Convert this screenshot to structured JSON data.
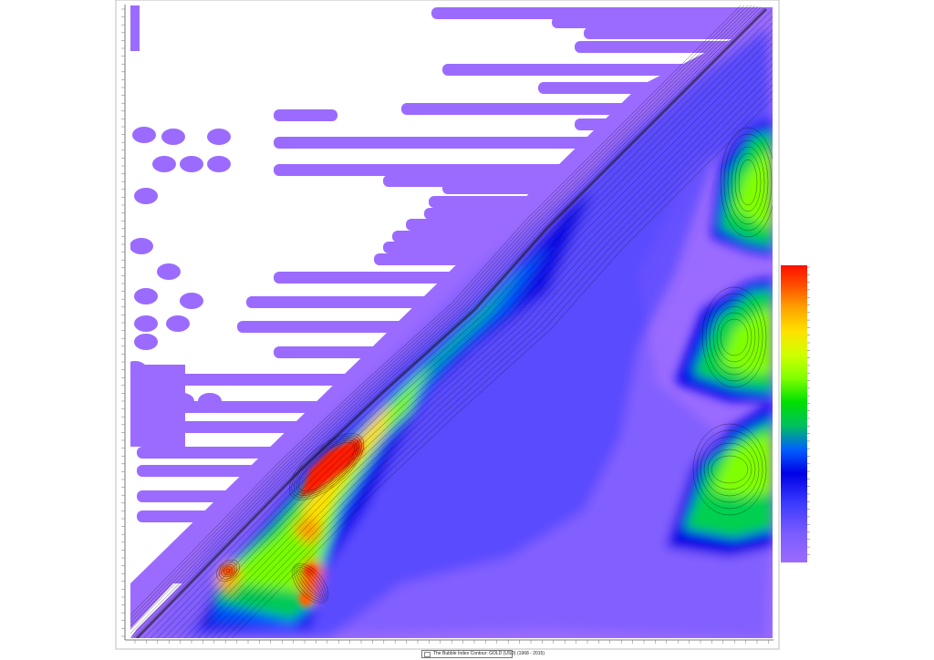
{
  "chart_data": {
    "type": "heatmap",
    "title": "",
    "xlabel": "",
    "ylabel": "",
    "legend": "The Bubble Index Contour: GOLD (USD) (1968 - 2015)",
    "legend_placement": "bottom-center",
    "grid": false,
    "colorscale": [
      "#9b6bff",
      "#7a5cff",
      "#3a3aff",
      "#0000e6",
      "#0060ff",
      "#00c060",
      "#00e000",
      "#80ff00",
      "#d0ff00",
      "#ffe000",
      "#ffa000",
      "#ff5000",
      "#ff1000"
    ],
    "colors": {
      "background": "#ffffff",
      "base_fill": "#9b6bff",
      "contour_line": "#000000"
    }
  }
}
